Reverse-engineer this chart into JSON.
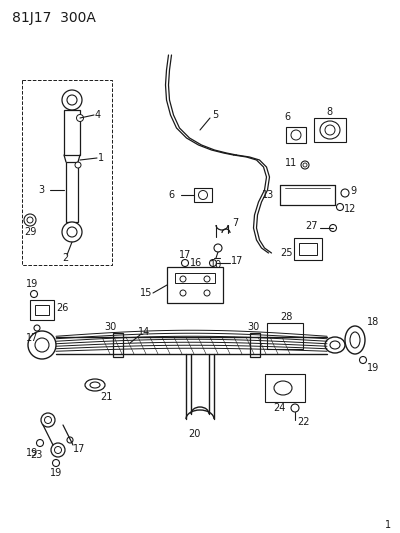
{
  "title": "81J17  300A",
  "bg_color": "#ffffff",
  "line_color": "#1a1a1a",
  "title_fontsize": 10,
  "label_fontsize": 7,
  "fig_width": 4.0,
  "fig_height": 5.33,
  "dpi": 100
}
